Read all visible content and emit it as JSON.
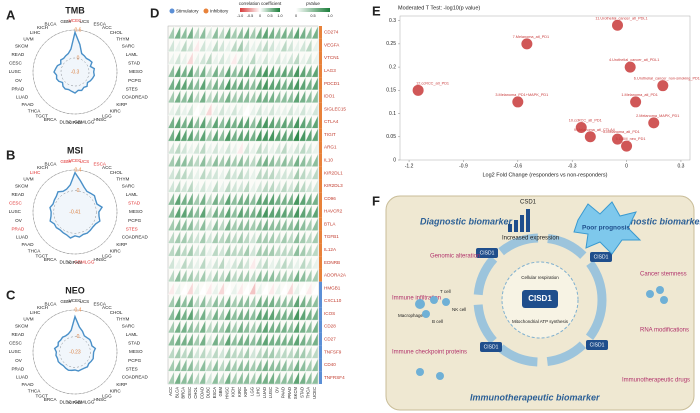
{
  "chart_data": [
    {
      "type": "radar",
      "panel": "A",
      "title": "TMB",
      "categories": [
        "UCEC",
        "UCS",
        "ESCA",
        "ACC",
        "CHOL",
        "THYM",
        "SARC",
        "LAML",
        "STAD",
        "MESO",
        "PCPG",
        "STES",
        "COADREAD",
        "KIRP",
        "KIRC",
        "LGG",
        "HNSC",
        "GBMLGG",
        "KIPAN",
        "DLBC",
        "BRCA",
        "TGCT",
        "THCA",
        "PAAD",
        "LUAD",
        "PRAD",
        "OV",
        "LUSC",
        "CESC",
        "READ",
        "SKCM",
        "UVM",
        "LIHC",
        "KICH",
        "BLCA",
        "GBM"
      ],
      "values": [
        0.55,
        0.3,
        0.12,
        0.1,
        0.08,
        0.1,
        0.12,
        0.05,
        0.12,
        0.1,
        0.12,
        0.1,
        0.08,
        0.05,
        0.1,
        0.08,
        0.12,
        0.1,
        0.15,
        0.12,
        0.1,
        0.12,
        0.1,
        0.05,
        0.1,
        0.12,
        0.1,
        0.15,
        0.12,
        0.1,
        0.05,
        0.1,
        0.08,
        0.1,
        0.12,
        0.2
      ],
      "rlim": [
        -0.3,
        0.6
      ],
      "rticks": [
        -0.3,
        0,
        0.6
      ],
      "color": "#4a90c8",
      "highlighted": [
        0
      ],
      "highlight_color": "#e03030"
    },
    {
      "type": "radar",
      "panel": "B",
      "title": "MSI",
      "categories": [
        "UCEC",
        "UCS",
        "ESCA",
        "ACC",
        "CHOL",
        "THYM",
        "SARC",
        "LAML",
        "STAD",
        "MESO",
        "PCPG",
        "STES",
        "COADREAD",
        "KIRP",
        "KIRC",
        "LGG",
        "HNSC",
        "GBMLGG",
        "KIPAN",
        "DLBC",
        "BRCA",
        "TGCT",
        "THCA",
        "PAAD",
        "LUAD",
        "PRAD",
        "OV",
        "LUSC",
        "CESC",
        "READ",
        "SKCM",
        "UVM",
        "LIHC",
        "KICH",
        "BLCA",
        "GBM"
      ],
      "values": [
        0.35,
        0.2,
        0.1,
        0.05,
        0.06,
        0.08,
        0.05,
        0.04,
        0.12,
        0.05,
        0.06,
        0.1,
        0.05,
        0.04,
        0.05,
        0.06,
        0.05,
        0.08,
        0.05,
        0.1,
        0.06,
        0.05,
        0.04,
        0.06,
        0.05,
        0.1,
        0.06,
        0.05,
        0.08,
        0.04,
        0.05,
        0.06,
        0.1,
        0.05,
        0.06,
        0.12
      ],
      "rlim": [
        -0.41,
        0.4
      ],
      "rticks": [
        -0.41,
        0,
        0.4
      ],
      "color": "#4a90c8",
      "highlighted": [
        0,
        1,
        2,
        8,
        11,
        17,
        25,
        28,
        32,
        35
      ],
      "highlight_color": "#e03030"
    },
    {
      "type": "radar",
      "panel": "C",
      "title": "NEO",
      "categories": [
        "UCEC",
        "UCS",
        "ESCA",
        "ACC",
        "CHOL",
        "THYM",
        "SARC",
        "LAML",
        "STAD",
        "MESO",
        "PCPG",
        "STES",
        "COADREAD",
        "KIRP",
        "KIRC",
        "LGG",
        "HNSC",
        "GBMLGG",
        "KIPAN",
        "DLBC",
        "BRCA",
        "TGCT",
        "THCA",
        "PAAD",
        "LUAD",
        "PRAD",
        "OV",
        "LUSC",
        "CESC",
        "READ",
        "SKCM",
        "UVM",
        "LIHC",
        "KICH",
        "BLCA",
        "GBM"
      ],
      "values": [
        0.3,
        0.15,
        0.1,
        0.05,
        0.05,
        0.06,
        0.05,
        0.04,
        0.08,
        0.05,
        0.05,
        0.06,
        0.05,
        0.04,
        0.06,
        0.05,
        0.05,
        0.06,
        0.04,
        0.05,
        0.06,
        0.05,
        0.04,
        0.05,
        0.06,
        0.05,
        0.06,
        0.05,
        0.08,
        0.04,
        0.06,
        0.05,
        0.06,
        0.05,
        0.06,
        0.1
      ],
      "rlim": [
        -0.23,
        0.4
      ],
      "rticks": [
        -0.23,
        0,
        0.4
      ],
      "color": "#4a90c8",
      "highlighted": [],
      "highlight_color": "#e03030"
    },
    {
      "type": "heatmap",
      "panel": "D",
      "groups": [
        {
          "name": "Stimulatory",
          "color": "#5b8fd6"
        },
        {
          "name": "Inhibitory",
          "color": "#e8823a"
        }
      ],
      "colorbar_title": "correlation coefficient",
      "clim": [
        -1,
        1
      ],
      "cticks": [
        {
          "value": -1,
          "label": "-1.0"
        },
        -0.5,
        0,
        0.5,
        {
          "value": 1,
          "label": "1.0"
        }
      ],
      "pvalue_title": "pValue",
      "plim": [
        0,
        1
      ],
      "pticks": [
        0,
        0.5,
        {
          "value": 1,
          "label": "1.0"
        }
      ],
      "rows": [
        "CD274",
        "VEGFA",
        "VTCN1",
        "LAG3",
        "PDCD1",
        "IDO1",
        "SIGLEC15",
        "CTLA4",
        "TIGIT",
        "ARG1",
        "IL10",
        "KIR2DL1",
        "KIR2DL3",
        "CD96",
        "HAVCR2",
        "BTLA",
        "TGFB1",
        "IL12A",
        "EDNRB",
        "ADORA2A",
        "HMGB1",
        "CXCL10",
        "ICOS",
        "CD28",
        "CD27",
        "TNFSF9",
        "CD40",
        "TNFRSF4"
      ],
      "row_groups": [
        1,
        1,
        1,
        1,
        1,
        1,
        1,
        1,
        1,
        1,
        1,
        1,
        1,
        1,
        1,
        1,
        1,
        1,
        1,
        1,
        0,
        0,
        0,
        0,
        0,
        0,
        0,
        0
      ],
      "columns": [
        "ACC",
        "BLCA",
        "BRCA",
        "CESC",
        "CHOL",
        "COAD",
        "DLBC",
        "ESCA",
        "GBM",
        "HNSC",
        "KICH",
        "KIRC",
        "KIRP",
        "LGG",
        "LIHC",
        "LUAD",
        "LUSC",
        "OV",
        "PAAD",
        "PRAD",
        "SKCM",
        "STAD",
        "THCA",
        "UCEC"
      ],
      "values": [
        [
          0.4,
          0.6,
          0.5,
          0.6,
          0.3,
          0.5,
          0.2,
          0.5,
          0.3,
          0.6,
          0.4,
          0.5,
          0.6,
          0.4,
          0.6,
          0.7,
          0.6,
          0.5,
          0.6,
          0.5,
          0.7,
          0.6,
          0.5,
          0.6
        ],
        [
          0.2,
          0.1,
          0.3,
          0.2,
          -0.1,
          0.2,
          0.1,
          0.3,
          0.2,
          0.1,
          0.3,
          0.4,
          0.2,
          0.1,
          0.2,
          0.3,
          0.2,
          0.1,
          0.3,
          0.2,
          0.1,
          0.2,
          0.3,
          0.1
        ],
        [
          0.1,
          0.2,
          0.1,
          -0.2,
          0.1,
          0.2,
          0.3,
          0.1,
          0.2,
          0.1,
          -0.1,
          0.2,
          0.1,
          0.3,
          0.1,
          0.2,
          0.1,
          0.2,
          0.1,
          0.2,
          0.3,
          0.1,
          0.2,
          0.1
        ],
        [
          0.5,
          0.7,
          0.6,
          0.7,
          0.4,
          0.6,
          0.3,
          0.6,
          0.4,
          0.7,
          0.5,
          0.6,
          0.7,
          0.5,
          0.7,
          0.8,
          0.7,
          0.6,
          0.7,
          0.6,
          0.8,
          0.7,
          0.6,
          0.7
        ],
        [
          0.6,
          0.7,
          0.7,
          0.6,
          0.5,
          0.7,
          0.4,
          0.6,
          0.5,
          0.8,
          0.6,
          0.7,
          0.6,
          0.5,
          0.7,
          0.8,
          0.7,
          0.7,
          0.6,
          0.7,
          0.8,
          0.7,
          0.6,
          0.7
        ],
        [
          0.4,
          0.6,
          0.5,
          0.6,
          0.3,
          0.6,
          0.3,
          0.5,
          0.4,
          0.6,
          0.4,
          0.5,
          0.5,
          0.4,
          0.6,
          0.6,
          0.6,
          0.5,
          0.5,
          0.5,
          0.7,
          0.6,
          0.5,
          0.5
        ],
        [
          0.1,
          0.2,
          0.1,
          0.2,
          0.0,
          0.1,
          -0.2,
          0.1,
          0.2,
          0.1,
          0.2,
          0.1,
          0.0,
          0.1,
          0.2,
          0.1,
          0.2,
          0.1,
          0.1,
          0.2,
          0.1,
          0.2,
          0.1,
          0.2
        ],
        [
          0.6,
          0.7,
          0.6,
          0.7,
          0.5,
          0.7,
          0.4,
          0.7,
          0.5,
          0.7,
          0.6,
          0.7,
          0.7,
          0.5,
          0.7,
          0.8,
          0.7,
          0.6,
          0.7,
          0.6,
          0.8,
          0.7,
          0.6,
          0.7
        ],
        [
          0.6,
          0.8,
          0.7,
          0.7,
          0.5,
          0.7,
          0.4,
          0.7,
          0.5,
          0.8,
          0.6,
          0.7,
          0.7,
          0.6,
          0.8,
          0.8,
          0.8,
          0.7,
          0.7,
          0.7,
          0.9,
          0.8,
          0.7,
          0.7
        ],
        [
          0.2,
          0.3,
          0.2,
          0.1,
          0.2,
          0.3,
          0.1,
          0.2,
          0.1,
          0.2,
          0.1,
          -0.1,
          0.2,
          0.1,
          0.3,
          0.2,
          0.1,
          0.2,
          0.3,
          0.1,
          0.2,
          0.3,
          0.2,
          0.1
        ],
        [
          0.4,
          0.5,
          0.5,
          0.4,
          0.3,
          0.5,
          0.3,
          0.5,
          0.4,
          0.5,
          0.4,
          0.5,
          0.4,
          0.3,
          0.5,
          0.6,
          0.5,
          0.4,
          0.5,
          0.4,
          0.6,
          0.5,
          0.4,
          0.5
        ],
        [
          0.2,
          0.3,
          0.3,
          0.2,
          0.1,
          0.3,
          0.2,
          0.2,
          0.1,
          0.3,
          0.2,
          0.3,
          0.2,
          0.1,
          0.3,
          0.3,
          0.3,
          0.2,
          0.2,
          0.2,
          0.4,
          0.3,
          0.2,
          0.3
        ],
        [
          0.2,
          0.3,
          0.2,
          0.3,
          0.1,
          0.2,
          0.1,
          0.3,
          0.1,
          0.3,
          0.2,
          0.2,
          0.3,
          0.1,
          0.2,
          0.3,
          0.3,
          0.2,
          0.3,
          0.2,
          0.4,
          0.3,
          0.2,
          0.2
        ],
        [
          0.5,
          0.7,
          0.6,
          0.6,
          0.4,
          0.6,
          0.3,
          0.6,
          0.4,
          0.7,
          0.5,
          0.6,
          0.6,
          0.5,
          0.7,
          0.7,
          0.7,
          0.6,
          0.6,
          0.6,
          0.8,
          0.7,
          0.6,
          0.6
        ],
        [
          0.5,
          0.7,
          0.7,
          0.6,
          0.5,
          0.7,
          0.3,
          0.6,
          0.5,
          0.7,
          0.5,
          0.7,
          0.6,
          0.6,
          0.7,
          0.8,
          0.7,
          0.7,
          0.7,
          0.6,
          0.8,
          0.7,
          0.6,
          0.7
        ],
        [
          0.4,
          0.5,
          0.5,
          0.5,
          0.3,
          0.5,
          0.2,
          0.5,
          0.3,
          0.6,
          0.4,
          0.5,
          0.5,
          0.4,
          0.5,
          0.6,
          0.5,
          0.5,
          0.5,
          0.5,
          0.6,
          0.5,
          0.4,
          0.5
        ],
        [
          0.3,
          0.4,
          0.4,
          0.3,
          0.2,
          0.4,
          0.2,
          0.4,
          0.3,
          0.4,
          0.3,
          0.4,
          0.3,
          0.2,
          0.4,
          0.4,
          0.4,
          0.3,
          0.4,
          0.3,
          0.5,
          0.4,
          0.3,
          0.4
        ],
        [
          0.3,
          0.4,
          0.3,
          0.4,
          0.2,
          0.3,
          0.1,
          0.3,
          0.2,
          0.4,
          0.3,
          0.3,
          0.4,
          0.2,
          0.4,
          0.4,
          0.4,
          0.3,
          0.3,
          0.3,
          0.5,
          0.4,
          0.3,
          0.3
        ],
        [
          0.2,
          0.1,
          0.3,
          0.2,
          0.1,
          0.3,
          0.1,
          0.2,
          0.3,
          0.1,
          0.2,
          0.3,
          0.2,
          -0.1,
          0.2,
          0.3,
          0.1,
          0.2,
          0.3,
          0.2,
          0.1,
          0.3,
          0.2,
          0.1
        ],
        [
          0.3,
          0.5,
          0.4,
          0.4,
          0.3,
          0.4,
          0.2,
          0.4,
          0.3,
          0.5,
          0.3,
          0.4,
          0.4,
          0.3,
          0.5,
          0.5,
          0.5,
          0.4,
          0.4,
          0.4,
          0.6,
          0.5,
          0.4,
          0.4
        ],
        [
          -0.1,
          0.1,
          0.0,
          -0.2,
          0.1,
          0.0,
          -0.1,
          0.1,
          -0.2,
          0.0,
          0.1,
          -0.1,
          0.0,
          -0.3,
          0.1,
          0.0,
          -0.1,
          0.1,
          0.0,
          -0.2,
          0.1,
          0.0,
          -0.1,
          0.0
        ],
        [
          0.4,
          0.6,
          0.5,
          0.6,
          0.3,
          0.5,
          0.3,
          0.5,
          0.4,
          0.6,
          0.4,
          0.5,
          0.5,
          0.4,
          0.6,
          0.6,
          0.6,
          0.5,
          0.5,
          0.5,
          0.7,
          0.6,
          0.5,
          0.5
        ],
        [
          0.5,
          0.7,
          0.6,
          0.7,
          0.4,
          0.6,
          0.3,
          0.6,
          0.4,
          0.7,
          0.5,
          0.6,
          0.6,
          0.5,
          0.7,
          0.7,
          0.7,
          0.6,
          0.6,
          0.6,
          0.8,
          0.7,
          0.6,
          0.6
        ],
        [
          0.4,
          0.6,
          0.6,
          0.5,
          0.4,
          0.6,
          0.3,
          0.5,
          0.4,
          0.6,
          0.4,
          0.6,
          0.5,
          0.4,
          0.6,
          0.7,
          0.6,
          0.6,
          0.6,
          0.5,
          0.7,
          0.6,
          0.5,
          0.6
        ],
        [
          0.5,
          0.6,
          0.6,
          0.6,
          0.4,
          0.6,
          0.2,
          0.6,
          0.4,
          0.7,
          0.5,
          0.6,
          0.6,
          0.5,
          0.6,
          0.7,
          0.6,
          0.6,
          0.6,
          0.6,
          0.7,
          0.6,
          0.5,
          0.6
        ],
        [
          0.3,
          0.4,
          0.3,
          0.4,
          0.2,
          0.3,
          0.2,
          0.3,
          0.2,
          0.4,
          0.3,
          0.3,
          0.4,
          0.2,
          0.3,
          0.4,
          0.4,
          0.3,
          0.3,
          0.3,
          0.4,
          0.4,
          0.3,
          0.3
        ],
        [
          0.4,
          0.5,
          0.5,
          0.5,
          0.3,
          0.5,
          0.3,
          0.5,
          0.3,
          0.5,
          0.4,
          0.5,
          0.5,
          0.4,
          0.5,
          0.6,
          0.5,
          0.5,
          0.5,
          0.4,
          0.6,
          0.5,
          0.4,
          0.5
        ],
        [
          0.4,
          0.6,
          0.5,
          0.5,
          0.3,
          0.5,
          0.2,
          0.5,
          0.3,
          0.6,
          0.4,
          0.5,
          0.5,
          0.4,
          0.6,
          0.6,
          0.6,
          0.5,
          0.5,
          0.5,
          0.7,
          0.6,
          0.5,
          0.5
        ]
      ]
    },
    {
      "type": "scatter",
      "panel": "E",
      "title": "Moderated T Test: -log10(p value)",
      "x_label": "Log2 Fold Change (responders vs non-responders)",
      "x": [
        -0.05,
        -0.55,
        0.02,
        -1.15,
        -0.6,
        0.05,
        0.2,
        0.15,
        -0.25,
        -0.2,
        -0.05,
        0.0
      ],
      "values": [
        0.29,
        0.25,
        0.2,
        0.15,
        0.125,
        0.125,
        0.16,
        0.08,
        0.07,
        0.05,
        0.045,
        0.03
      ],
      "point_labels": [
        "11.Urothelial_cancer_atl_PDL1",
        "7.Melanoma_atl_PD1",
        "4.Urothelial_cancer_atl_PDL1",
        "12.ccRCC_atl_PD1",
        "3.Melanoma_PD1+MAPK_PD1",
        "1.Melanoma_atl_PD1",
        "6.Urothelial_cancer_non-smoking_PD1",
        "2.Melanoma_MAPK_PD1",
        "10.ccRCC_atl_PD1",
        "9.Melanoma_atl_CTLA4",
        "8.Melanoma_atl_PD1",
        "5.GBM_neo_PD1"
      ],
      "color": "#c83a3a",
      "xlim": [
        -1.25,
        0.35
      ],
      "xticks": [
        {
          "value": -1.2,
          "label": "-1.2"
        },
        {
          "value": -0.9,
          "label": "-0.9"
        },
        {
          "value": -0.6,
          "label": "-0.6"
        },
        {
          "value": -0.3,
          "label": "-0.3"
        },
        0,
        0.3
      ],
      "ylim": [
        0,
        0.31
      ],
      "yticks": [
        0,
        0.05,
        0.1,
        0.15,
        0.2,
        0.25,
        0.3
      ]
    }
  ],
  "diagram": {
    "panel": "F",
    "labels": [
      "Diagnostic biomarker",
      "Prognostic biomarker",
      "Immunotherapeutic biomarker",
      "Poor prognosis",
      "CISD1",
      "CSD1",
      "Increased expression",
      "Genomic alteration",
      "Immune infiltration",
      "Immune checkpoint proteins",
      "Immunotherapeutic drugs",
      "Cancer stemness",
      "RNA modifications",
      "Cellular respiration",
      "Mitochondrial ATP synthesis",
      "Macrophage",
      "T cell",
      "B cell",
      "NK cell"
    ]
  }
}
